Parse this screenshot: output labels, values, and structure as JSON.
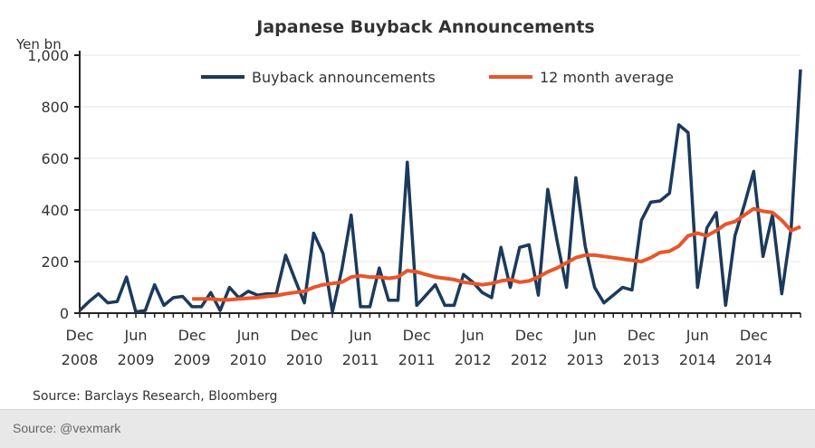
{
  "chart_data": {
    "type": "line",
    "title": "Japanese Buyback Announcements",
    "ylabel": "Yen bn",
    "xlabel": "",
    "ylim": [
      0,
      1000
    ],
    "yticks": [
      "0",
      "200",
      "400",
      "600",
      "800",
      "1,000"
    ],
    "ytick_values": [
      0,
      200,
      400,
      600,
      800,
      1000
    ],
    "xtick_labels": [
      [
        "Dec",
        "2008"
      ],
      [
        "Jun",
        "2009"
      ],
      [
        "Dec",
        "2009"
      ],
      [
        "Jun",
        "2010"
      ],
      [
        "Dec",
        "2010"
      ],
      [
        "Jun",
        "2011"
      ],
      [
        "Dec",
        "2011"
      ],
      [
        "Jun",
        "2012"
      ],
      [
        "Dec",
        "2012"
      ],
      [
        "Jun",
        "2013"
      ],
      [
        "Dec",
        "2013"
      ],
      [
        "Jun",
        "2014"
      ],
      [
        "Dec",
        "2014"
      ]
    ],
    "x_start": "Dec 2008",
    "x_unit": "month",
    "grid": true,
    "legend_position": "top",
    "series": [
      {
        "name": "Buyback announcements",
        "color": "#1b3a5c",
        "start_index": 0,
        "values": [
          10,
          45,
          75,
          40,
          45,
          140,
          5,
          10,
          110,
          30,
          60,
          65,
          25,
          25,
          80,
          10,
          100,
          60,
          85,
          70,
          75,
          75,
          225,
          130,
          40,
          310,
          230,
          5,
          170,
          380,
          25,
          25,
          175,
          50,
          50,
          585,
          30,
          70,
          110,
          30,
          30,
          150,
          120,
          80,
          60,
          255,
          100,
          255,
          265,
          70,
          480,
          280,
          100,
          525,
          260,
          100,
          40,
          70,
          100,
          90,
          360,
          430,
          435,
          465,
          730,
          700,
          100,
          330,
          390,
          30,
          300,
          420,
          550,
          220,
          380,
          75,
          330,
          945
        ]
      },
      {
        "name": "12 month average",
        "color": "#e8562a",
        "start_index": 12,
        "values": [
          55,
          55,
          55,
          52,
          52,
          55,
          58,
          60,
          65,
          68,
          75,
          80,
          85,
          100,
          110,
          115,
          120,
          140,
          145,
          140,
          140,
          135,
          140,
          165,
          160,
          150,
          140,
          135,
          130,
          120,
          115,
          110,
          115,
          125,
          130,
          120,
          125,
          140,
          160,
          175,
          195,
          215,
          225,
          225,
          220,
          215,
          210,
          205,
          200,
          215,
          235,
          240,
          260,
          300,
          310,
          300,
          320,
          345,
          355,
          380,
          405,
          395,
          390,
          360,
          320,
          335
        ]
      }
    ]
  },
  "source_note": "Source: Barclays Research, Bloomberg",
  "footer": {
    "credit": "Source: @vexmark"
  }
}
